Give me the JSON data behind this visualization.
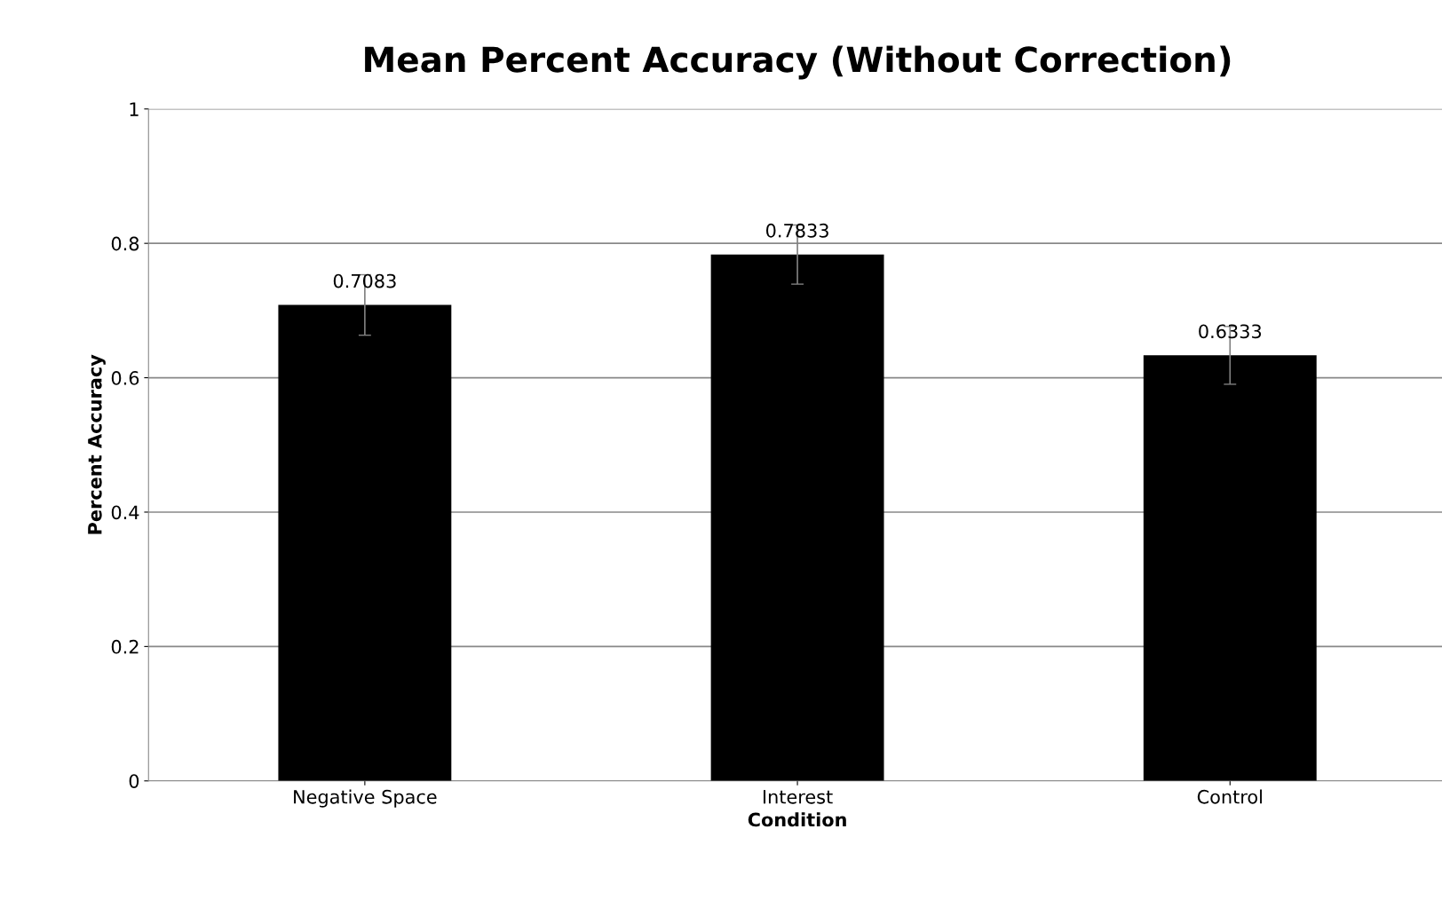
{
  "chart_data": {
    "type": "bar",
    "title": "Mean Percent Accuracy (Without Correction)",
    "xlabel": "Condition",
    "ylabel": "Percent Accuracy",
    "categories": [
      "Negative Space",
      "Interest",
      "Control"
    ],
    "values": [
      0.7083,
      0.7833,
      0.6333
    ],
    "errors": [
      0.045,
      0.044,
      0.043
    ],
    "color": "#000000",
    "data_labels": true,
    "grid": "y",
    "ylim": [
      0,
      1
    ],
    "yticks": [
      0,
      0.2,
      0.4,
      0.6,
      0.8,
      1
    ]
  }
}
